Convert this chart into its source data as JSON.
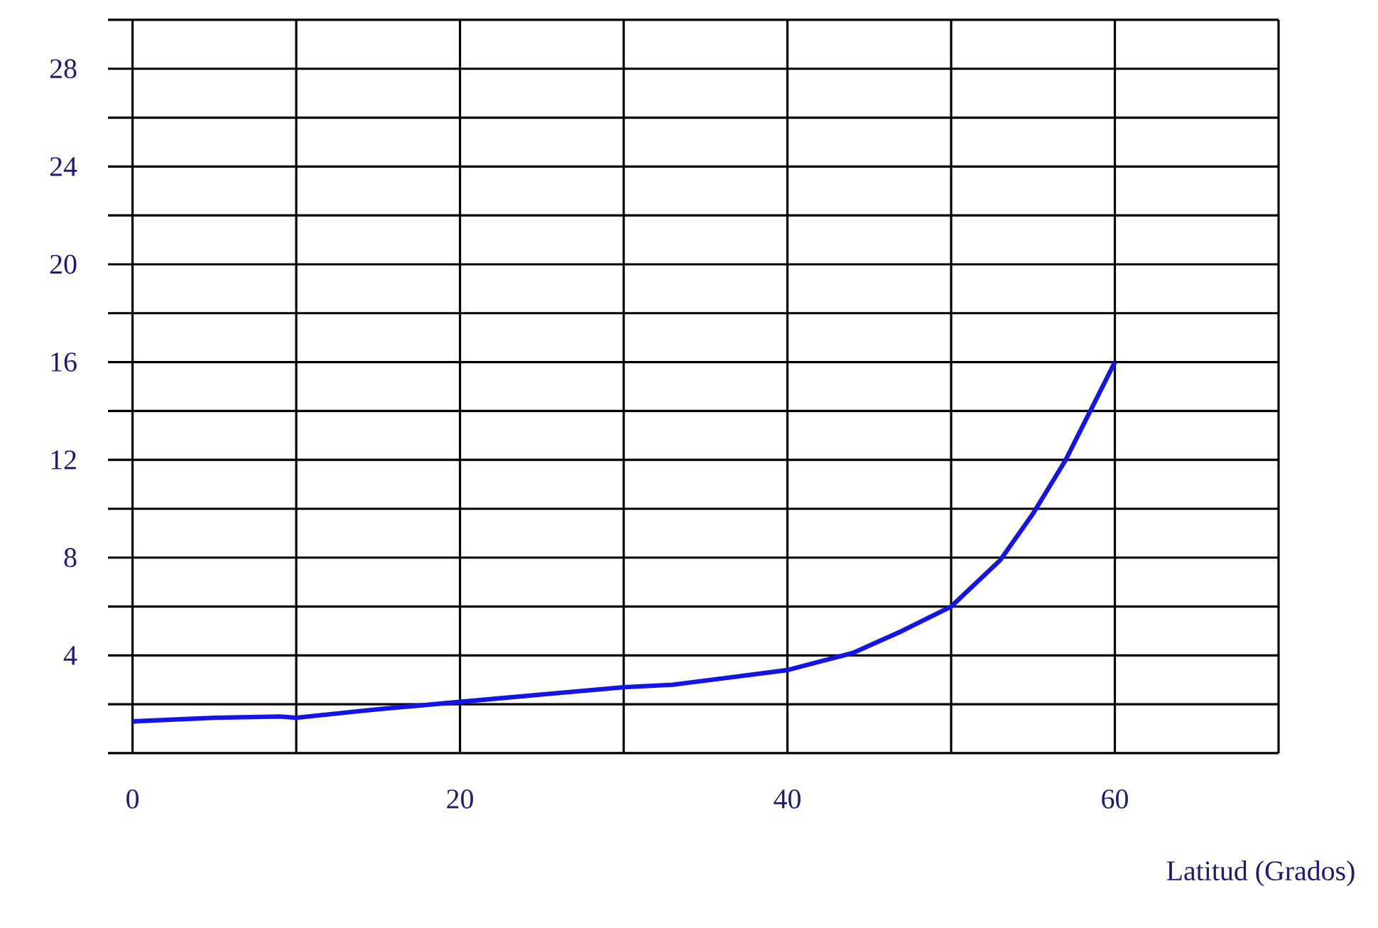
{
  "chart_data": {
    "type": "line",
    "xlabel": "Latitud (Grados)",
    "x": [
      0,
      5,
      9,
      10,
      15,
      20,
      25,
      30,
      33,
      40,
      44,
      47,
      50,
      53,
      55,
      57,
      60
    ],
    "values": [
      1.3,
      1.45,
      1.5,
      1.45,
      1.8,
      2.1,
      2.4,
      2.7,
      2.8,
      3.4,
      4.1,
      5.0,
      6.0,
      7.9,
      9.8,
      12.0,
      16.0
    ],
    "color": "#1414e8",
    "xlim": [
      -1.5,
      70
    ],
    "ylim": [
      0,
      30
    ],
    "xticks": [
      0,
      {
        "value": 10,
        "label": null
      },
      20,
      {
        "value": 30,
        "label": null
      },
      40,
      {
        "value": 50,
        "label": null
      },
      60,
      {
        "value": 70,
        "label": null
      }
    ],
    "yticks": [
      {
        "value": 0,
        "label": null
      },
      {
        "value": 2,
        "label": null
      },
      4,
      {
        "value": 6,
        "label": null
      },
      8,
      {
        "value": 10,
        "label": null
      },
      12,
      {
        "value": 14,
        "label": null
      },
      16,
      {
        "value": 18,
        "label": null
      },
      20,
      {
        "value": 22,
        "label": null
      },
      24,
      {
        "value": 26,
        "label": null
      },
      28,
      {
        "value": 30,
        "label": null
      }
    ],
    "grid": true,
    "marker": "none",
    "line_style": "solid"
  }
}
